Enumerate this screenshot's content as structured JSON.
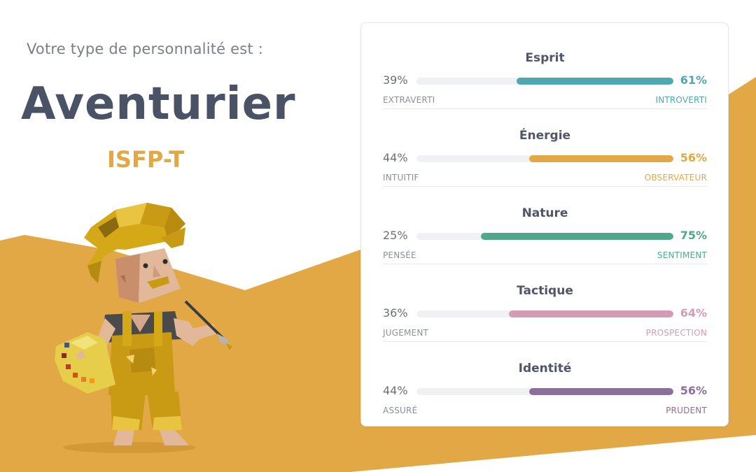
{
  "header": {
    "intro": "Votre type de personnalité est :",
    "type_name": "Aventurier",
    "type_code": "ISFP-T"
  },
  "avatar": {
    "icon": "adventurer-painter-illustration"
  },
  "colors": {
    "background_wave": "#e2a845",
    "title": "#4a5265",
    "code": "#e2a845"
  },
  "traits": [
    {
      "title": "Esprit",
      "left_pct": "39%",
      "right_pct": "61%",
      "fill_fraction": 0.61,
      "left_label": "EXTRAVERTI",
      "right_label": "INTROVERTI",
      "color": "#4ea8b0"
    },
    {
      "title": "Énergie",
      "left_pct": "44%",
      "right_pct": "56%",
      "fill_fraction": 0.56,
      "left_label": "INTUITIF",
      "right_label": "OBSERVATEUR",
      "color": "#e2a845"
    },
    {
      "title": "Nature",
      "left_pct": "25%",
      "right_pct": "75%",
      "fill_fraction": 0.75,
      "left_label": "PENSÉE",
      "right_label": "SENTIMENT",
      "color": "#4fa88a"
    },
    {
      "title": "Tactique",
      "left_pct": "36%",
      "right_pct": "64%",
      "fill_fraction": 0.64,
      "left_label": "JUGEMENT",
      "right_label": "PROSPECTION",
      "color": "#d29cb4"
    },
    {
      "title": "Identité",
      "left_pct": "44%",
      "right_pct": "56%",
      "fill_fraction": 0.56,
      "left_label": "ASSURÉ",
      "right_label": "PRUDENT",
      "color": "#8c6f9c"
    }
  ]
}
